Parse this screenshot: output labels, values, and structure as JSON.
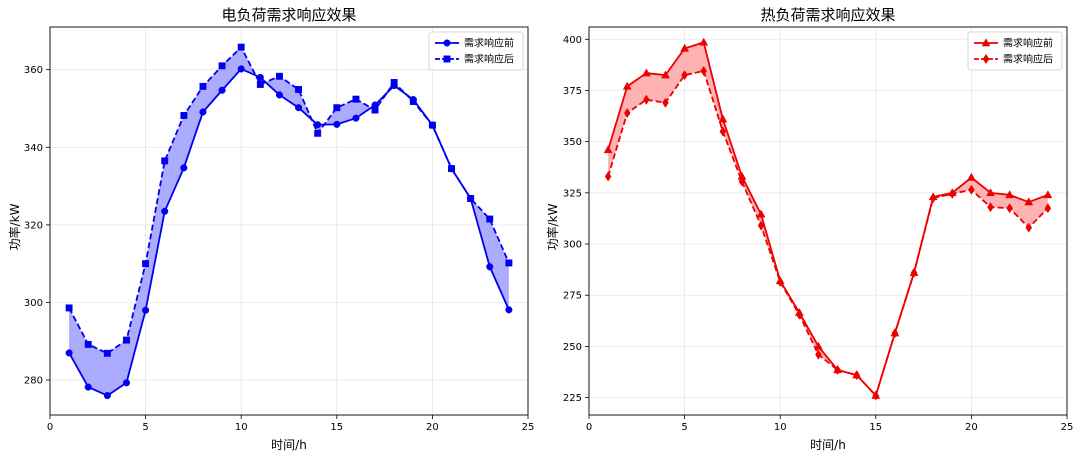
{
  "chart_data": [
    {
      "type": "line",
      "title": "电负荷需求响应效果",
      "xlabel": "时间/h",
      "ylabel": "功率/kW",
      "xlim": [
        0,
        25
      ],
      "ylim": [
        271,
        371
      ],
      "xticks": [
        0,
        5,
        10,
        15,
        20,
        25
      ],
      "yticks": [
        280,
        300,
        320,
        340,
        360
      ],
      "grid": true,
      "legend_position": "top-right",
      "color": "#0000ee",
      "fill": "#a3a3ff",
      "x": [
        1,
        2,
        3,
        4,
        5,
        6,
        7,
        8,
        9,
        10,
        11,
        12,
        13,
        14,
        15,
        16,
        17,
        18,
        19,
        20,
        21,
        22,
        23,
        24
      ],
      "series": [
        {
          "name": "需求响应前",
          "marker": "circle",
          "linestyle": "solid",
          "values": [
            287,
            278.2,
            276,
            279.3,
            298,
            323.5,
            334.7,
            349.1,
            354.7,
            360.2,
            358,
            353.5,
            350.2,
            345.8,
            345.9,
            347.5,
            350.9,
            355.9,
            352.3,
            345.7,
            334.5,
            326.8,
            309.2,
            298.1
          ]
        },
        {
          "name": "需求响应后",
          "marker": "square",
          "linestyle": "dashed",
          "values": [
            298.6,
            289.2,
            286.9,
            290.3,
            310,
            336.5,
            348.2,
            355.7,
            361,
            365.8,
            356.2,
            358.3,
            354.9,
            343.6,
            350.2,
            352.4,
            349.6,
            356.7,
            351.8,
            345.7,
            334.5,
            326.8,
            321.5,
            310.2
          ]
        }
      ]
    },
    {
      "type": "line",
      "title": "热负荷需求响应效果",
      "xlabel": "时间/h",
      "ylabel": "功率/kW",
      "xlim": [
        0,
        25
      ],
      "ylim": [
        216.5,
        406
      ],
      "xticks": [
        0,
        5,
        10,
        15,
        20,
        25
      ],
      "yticks": [
        225,
        250,
        275,
        300,
        325,
        350,
        375,
        400
      ],
      "grid": true,
      "legend_position": "top-right",
      "color": "#ee0000",
      "fill": "#ffaaaa",
      "x": [
        1,
        2,
        3,
        4,
        5,
        6,
        7,
        8,
        9,
        10,
        11,
        12,
        13,
        14,
        15,
        16,
        17,
        18,
        19,
        20,
        21,
        22,
        23,
        24
      ],
      "series": [
        {
          "name": "需求响应前",
          "marker": "triangle",
          "linestyle": "solid",
          "values": [
            346,
            377,
            383.5,
            382.5,
            395.5,
            398.5,
            361,
            333,
            314.5,
            282,
            266.5,
            250,
            238.5,
            236,
            226,
            256.5,
            286,
            323,
            325,
            332.5,
            325,
            324,
            320.5,
            324
          ]
        },
        {
          "name": "需求响应后",
          "marker": "diamond",
          "linestyle": "dashed",
          "values": [
            333,
            364,
            370.5,
            369,
            382.5,
            384.5,
            355,
            330.5,
            309,
            281.5,
            265.5,
            246,
            238.5,
            236,
            226,
            256.5,
            286,
            322.5,
            324.5,
            326.5,
            318,
            317.5,
            308,
            317.5
          ]
        }
      ]
    }
  ]
}
